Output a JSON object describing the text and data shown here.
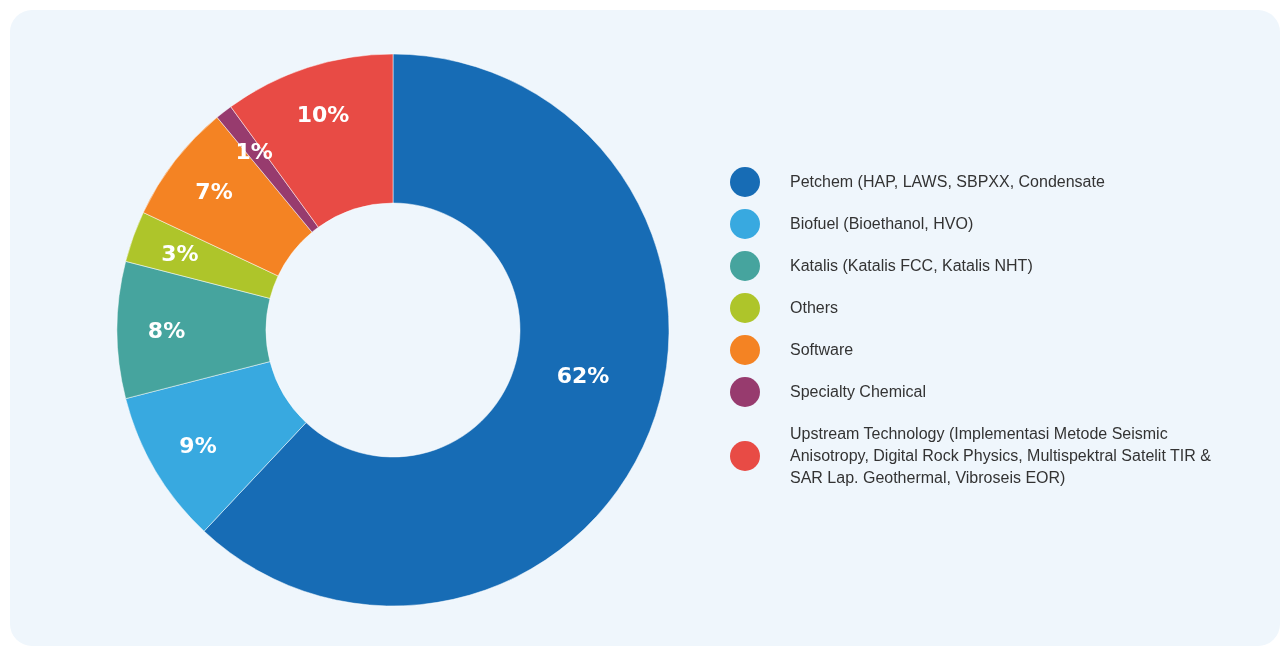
{
  "chart_data": {
    "type": "donut",
    "categories": [
      "Petchem (HAP, LAWS, SBPXX, Condensate",
      "Biofuel (Bioethanol, HVO)",
      "Katalis (Katalis FCC, Katalis NHT)",
      "Others",
      "Software",
      "Specialty Chemical",
      "Upstream Technology (Implementasi Metode Seismic Anisotropy, Digital Rock Physics, Multispektral Satelit TIR & SAR Lap. Geothermal, Vibroseis EOR)"
    ],
    "values": [
      62,
      9,
      8,
      3,
      7,
      1,
      10
    ],
    "value_labels": [
      "62%",
      "9%",
      "8%",
      "3%",
      "7%",
      "1%",
      "10%"
    ],
    "colors": [
      "#176cb5",
      "#38a9e0",
      "#46a49e",
      "#aec52a",
      "#f48323",
      "#973b6e",
      "#e84b45"
    ],
    "legend": "right"
  }
}
